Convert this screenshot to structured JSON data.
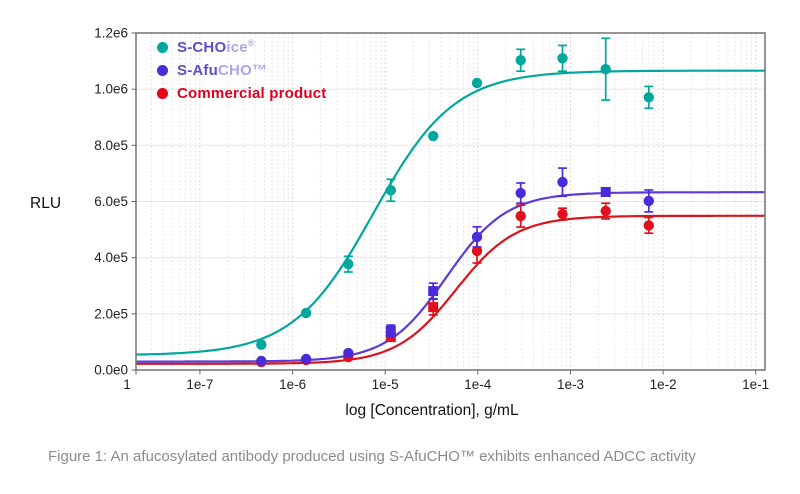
{
  "caption": {
    "text": "Figure 1: An afucosylated antibody produced using S-AfuCHO™ exhibits enhanced ADCC activity"
  },
  "legend": {
    "items": [
      {
        "marker_color": "#00A79D",
        "parts": [
          {
            "t": "S-CHO",
            "c": "#5B50C7",
            "sup": false
          },
          {
            "t": "ice",
            "c": "#ACA5E8",
            "sup": false
          },
          {
            "t": "®",
            "c": "#ACA5E8",
            "sup": true
          }
        ]
      },
      {
        "marker_color": "#4B2BD9",
        "parts": [
          {
            "t": "S-Afu",
            "c": "#5B50C7",
            "sup": false
          },
          {
            "t": "CHO",
            "c": "#ACA5E8",
            "sup": false
          },
          {
            "t": "™",
            "c": "#ACA5E8",
            "sup": false
          }
        ]
      },
      {
        "marker_color": "#E50019",
        "parts": [
          {
            "t": "Commercial product",
            "c": "#E0001E",
            "sup": false
          }
        ]
      }
    ]
  },
  "chart_data": {
    "type": "scatter",
    "subtype": "dose-response-4PL-fit",
    "title": "",
    "xlabel": "log [Concentration], g/mL",
    "ylabel": "RLU",
    "x_scale": "log",
    "x_range_log10": [
      -7.69,
      -0.9
    ],
    "ylim": [
      0,
      1200000
    ],
    "grid": {
      "horizontal": "solid",
      "vertical": "dotted log minor"
    },
    "legend_position": "top-left-inside",
    "y_ticks": [
      {
        "label": "0.0e0",
        "value": 0
      },
      {
        "label": "2.0e5",
        "value": 200000
      },
      {
        "label": "4.0e5",
        "value": 400000
      },
      {
        "label": "6.0e5",
        "value": 600000
      },
      {
        "label": "8.0e5",
        "value": 800000
      },
      {
        "label": "1.0e6",
        "value": 1000000
      },
      {
        "label": "1.2e6",
        "value": 1200000
      }
    ],
    "x_ticks": [
      {
        "label": "1",
        "edge": true
      },
      {
        "label": "1e-7",
        "value": 1e-07
      },
      {
        "label": "1e-6",
        "value": 1e-06
      },
      {
        "label": "1e-5",
        "value": 1e-05
      },
      {
        "label": "1e-4",
        "value": 0.0001
      },
      {
        "label": "1e-3",
        "value": 0.001
      },
      {
        "label": "1e-2",
        "value": 0.01
      },
      {
        "label": "1e-1",
        "value": 0.1
      }
    ],
    "concentrations_g_per_mL": [
      4.6e-07,
      1.4e-06,
      4e-06,
      1.15e-05,
      3.3e-05,
      9.8e-05,
      0.00029,
      0.00082,
      0.0024,
      0.007
    ],
    "series": [
      {
        "name": "S-CHOice®",
        "color": "#00A79D",
        "line_color": "#00A79D",
        "z": 1,
        "values": [
          90000,
          203000,
          377000,
          640000,
          833000,
          1022000,
          1103000,
          1110000,
          1071000,
          971000
        ],
        "errors": [
          0,
          0,
          28000,
          39000,
          0,
          0,
          39000,
          46000,
          110000,
          39000
        ],
        "markers": [
          "circle",
          "circle",
          "circle",
          "circle",
          "circle",
          "circle",
          "circle",
          "circle",
          "circle",
          "circle"
        ],
        "fit_4pl": {
          "bottom": 52000,
          "top": 1066000,
          "ec50": 7.5e-06,
          "hill": 1.0
        }
      },
      {
        "name": "S-AfuCHO™",
        "color": "#4B2BD9",
        "line_color": "#5C3BD6",
        "z": 3,
        "values": [
          32000,
          39000,
          60000,
          139000,
          281000,
          474000,
          630000,
          669000,
          634000,
          602000
        ],
        "errors": [
          0,
          0,
          0,
          21000,
          28000,
          36000,
          36000,
          50000,
          0,
          39000
        ],
        "markers": [
          "circle",
          "circle",
          "circle",
          "square",
          "square",
          "circle",
          "circle",
          "circle",
          "square",
          "circle"
        ],
        "fit_4pl": {
          "bottom": 30000,
          "top": 633000,
          "ec50": 4.6e-05,
          "hill": 1.35
        }
      },
      {
        "name": "Commercial product",
        "color": "#E0111E",
        "line_color": "#D9141C",
        "z": 2,
        "values": [
          28000,
          36000,
          46000,
          117000,
          224000,
          424000,
          548000,
          555000,
          566000,
          515000
        ],
        "errors": [
          0,
          0,
          0,
          0,
          28000,
          43000,
          39000,
          21000,
          28000,
          28000
        ],
        "markers": [
          "circle",
          "circle",
          "circle",
          "square",
          "square",
          "circle",
          "circle",
          "circle",
          "circle",
          "circle"
        ],
        "fit_4pl": {
          "bottom": 22000,
          "top": 549000,
          "ec50": 5.8e-05,
          "hill": 1.35
        }
      }
    ]
  }
}
